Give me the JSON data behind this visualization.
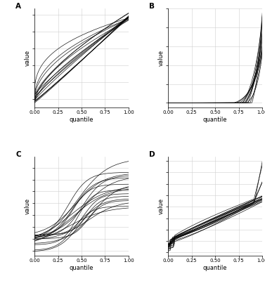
{
  "fig_width": 3.77,
  "fig_height": 4.0,
  "dpi": 100,
  "background_color": "#ffffff",
  "line_color": "#000000",
  "line_width": 0.5,
  "line_alpha": 0.9,
  "grid_color": "#d0d0d0",
  "grid_linewidth": 0.4,
  "xlabel": "quantile",
  "ylabel": "value",
  "xticks": [
    0.0,
    0.25,
    0.5,
    0.75,
    1.0
  ],
  "xtick_labels": [
    "0.00",
    "0.25",
    "0.50",
    "0.75",
    "1.00"
  ],
  "panel_labels": [
    "A",
    "B",
    "C",
    "D"
  ],
  "n_curves_A": 15,
  "n_curves_B": 12,
  "n_curves_C": 18,
  "n_curves_D": 16,
  "n_points": 300,
  "tick_fontsize": 5.0,
  "label_fontsize": 6.0,
  "panel_label_fontsize": 7.5
}
